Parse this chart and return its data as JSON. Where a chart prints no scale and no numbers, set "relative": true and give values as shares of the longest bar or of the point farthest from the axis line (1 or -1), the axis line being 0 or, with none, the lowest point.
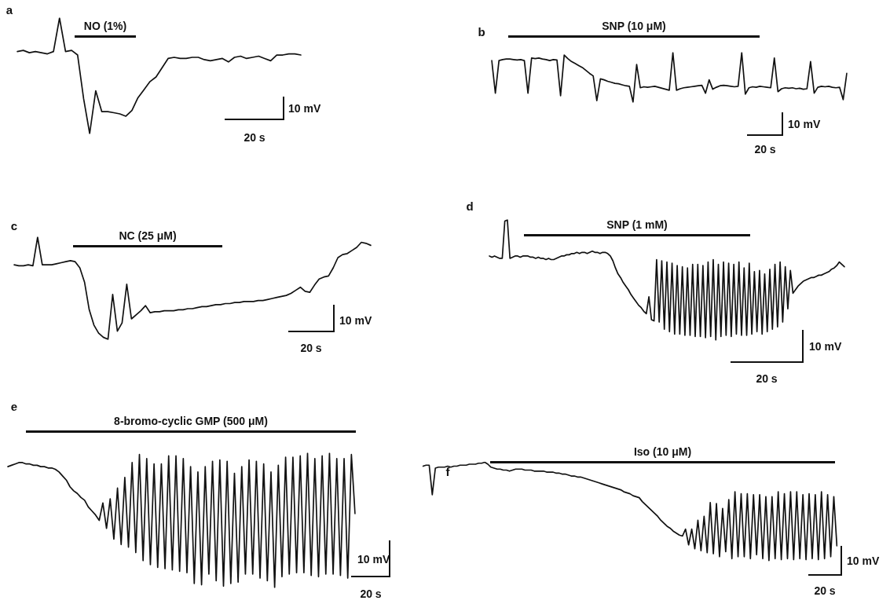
{
  "chart_data": [
    {
      "type": "line",
      "title": "a",
      "relative": true,
      "tick_labels": false,
      "annotations": [
        "NO (1%)",
        "10 mV",
        "20 s"
      ],
      "categories": [
        null,
        null,
        null,
        null,
        null,
        null,
        null,
        null,
        null,
        null,
        null,
        null,
        null,
        null,
        null,
        null,
        null,
        null,
        null,
        null,
        null,
        null,
        null,
        null,
        null,
        null,
        null,
        null,
        null,
        null,
        null,
        null,
        null,
        null,
        null,
        null,
        null,
        null,
        null,
        null,
        null,
        null,
        null,
        null,
        null,
        null,
        null,
        null
      ],
      "series": [
        {
          "color": "#111111",
          "values": [
            0.71,
            0.72,
            0.7,
            0.71,
            0.7,
            0.69,
            0.71,
            1,
            0.71,
            0.72,
            0.68,
            0.3,
            0,
            0.37,
            0.19,
            0.19,
            0.18,
            0.17,
            0.15,
            0.2,
            0.31,
            0.38,
            0.45,
            0.49,
            0.57,
            0.65,
            0.66,
            0.65,
            0.65,
            0.66,
            0.66,
            0.64,
            0.63,
            0.64,
            0.65,
            0.62,
            0.66,
            0.67,
            0.65,
            0.66,
            0.67,
            0.65,
            0.63,
            0.68,
            0.68,
            0.69,
            0.69,
            0.68
          ]
        }
      ]
    },
    {
      "type": "line",
      "title": "b",
      "relative": true,
      "tick_labels": false,
      "annotations": [
        "SNP (10 μM)",
        "10 mV",
        "20 s"
      ],
      "categories": [
        null,
        null,
        null,
        null,
        null,
        null,
        null,
        null,
        null,
        null,
        null,
        null,
        null,
        null,
        null,
        null,
        null,
        null,
        null,
        null,
        null,
        null,
        null,
        null,
        null,
        null,
        null,
        null,
        null,
        null,
        null,
        null,
        null,
        null,
        null,
        null,
        null,
        null,
        null,
        null,
        null,
        null,
        null,
        null,
        null,
        null,
        null,
        null,
        null,
        null,
        null,
        null,
        null,
        null,
        null,
        null,
        null,
        null,
        null,
        null,
        null,
        null,
        null,
        null,
        null,
        null,
        null,
        null,
        null,
        null,
        null,
        null,
        null,
        null,
        null,
        null,
        null,
        null,
        null,
        null,
        null,
        null,
        null,
        null,
        null,
        null,
        null,
        null,
        null,
        null,
        null,
        null,
        null,
        null,
        null,
        null,
        null,
        null,
        null
      ],
      "series": [
        {
          "color": "#111111",
          "values": [
            0.84,
            0.18,
            0.84,
            0.86,
            0.87,
            0.87,
            0.86,
            0.85,
            0.86,
            0.84,
            0.18,
            0.89,
            0.88,
            0.89,
            0.87,
            0.86,
            0.84,
            0.86,
            0.85,
            0.13,
            0.95,
            0.88,
            0.82,
            0.78,
            0.74,
            0.7,
            0.64,
            0.58,
            0.53,
            0.03,
            0.47,
            0.45,
            0.42,
            0.4,
            0.38,
            0.37,
            0.35,
            0.33,
            0.32,
            0,
            0.76,
            0.29,
            0.31,
            0.3,
            0.31,
            0.32,
            0.3,
            0.28,
            0.26,
            0.24,
            1,
            0.24,
            0.27,
            0.29,
            0.3,
            0.31,
            0.32,
            0.33,
            0.34,
            0.18,
            0.45,
            0.26,
            0.3,
            0.33,
            0.34,
            0.33,
            0.32,
            0.31,
            0.32,
            1,
            0.16,
            0.29,
            0.31,
            0.3,
            0.32,
            0.31,
            0.3,
            0.29,
            0.89,
            0.21,
            0.27,
            0.29,
            0.28,
            0.29,
            0.27,
            0.28,
            0.26,
            0.27,
            0.82,
            0.18,
            0.3,
            0.32,
            0.31,
            0.32,
            0.3,
            0.29,
            0.3,
            0.05,
            0.58
          ]
        }
      ]
    },
    {
      "type": "line",
      "title": "c",
      "relative": true,
      "tick_labels": false,
      "annotations": [
        "NC (25 μM)",
        "10 mV",
        "20 s"
      ],
      "categories": [
        null,
        null,
        null,
        null,
        null,
        null,
        null,
        null,
        null,
        null,
        null,
        null,
        null,
        null,
        null,
        null,
        null,
        null,
        null,
        null,
        null,
        null,
        null,
        null,
        null,
        null,
        null,
        null,
        null,
        null,
        null,
        null,
        null,
        null,
        null,
        null,
        null,
        null,
        null,
        null,
        null,
        null,
        null,
        null,
        null,
        null,
        null,
        null,
        null,
        null,
        null,
        null,
        null,
        null,
        null,
        null,
        null,
        null,
        null,
        null,
        null,
        null,
        null,
        null,
        null,
        null,
        null,
        null,
        null,
        null,
        null,
        null,
        null,
        null,
        null,
        null,
        null
      ],
      "series": [
        {
          "color": "#111111",
          "values": [
            0.73,
            0.72,
            0.72,
            0.73,
            0.72,
            1,
            0.73,
            0.73,
            0.73,
            0.74,
            0.75,
            0.76,
            0.77,
            0.76,
            0.7,
            0.56,
            0.29,
            0.14,
            0.06,
            0.02,
            0,
            0.44,
            0.08,
            0.16,
            0.54,
            0.2,
            0.24,
            0.28,
            0.33,
            0.26,
            0.27,
            0.27,
            0.28,
            0.28,
            0.28,
            0.29,
            0.29,
            0.3,
            0.3,
            0.31,
            0.32,
            0.32,
            0.33,
            0.34,
            0.34,
            0.35,
            0.35,
            0.36,
            0.36,
            0.37,
            0.37,
            0.37,
            0.38,
            0.38,
            0.39,
            0.4,
            0.41,
            0.42,
            0.43,
            0.45,
            0.48,
            0.51,
            0.47,
            0.46,
            0.53,
            0.59,
            0.61,
            0.62,
            0.7,
            0.8,
            0.83,
            0.84,
            0.87,
            0.9,
            0.95,
            0.94,
            0.92
          ]
        }
      ]
    },
    {
      "type": "line",
      "title": "d",
      "relative": true,
      "tick_labels": false,
      "annotations": [
        "SNP (1 mM)",
        "10 mV",
        "20 s"
      ],
      "categories": [
        null,
        null,
        null,
        null,
        null,
        null,
        null,
        null,
        null,
        null,
        null,
        null,
        null,
        null,
        null,
        null,
        null,
        null,
        null,
        null,
        null,
        null,
        null,
        null,
        null,
        null,
        null,
        null,
        null,
        null,
        null,
        null,
        null,
        null,
        null,
        null,
        null,
        null,
        null,
        null,
        null,
        null,
        null,
        null,
        null,
        null,
        null,
        null,
        null,
        null,
        null,
        null,
        null,
        null,
        null,
        null,
        null,
        null,
        null,
        null,
        null,
        null,
        null,
        null,
        null,
        null,
        null,
        null,
        null,
        null,
        null,
        null,
        null,
        null,
        null,
        null,
        null,
        null,
        null,
        null,
        null,
        null,
        null,
        null,
        null,
        null,
        null,
        null,
        null,
        null,
        null,
        null,
        null,
        null,
        null,
        null,
        null,
        null,
        null,
        null,
        null,
        null,
        null,
        null,
        null,
        null,
        null,
        null,
        null,
        null,
        null,
        null,
        null,
        null,
        null,
        null,
        null,
        null,
        null,
        null,
        null,
        null,
        null,
        null,
        null,
        null,
        null,
        null,
        null,
        null,
        null,
        null,
        null,
        null,
        null,
        null,
        null,
        null,
        null
      ],
      "series": [
        {
          "color": "#111111",
          "values": [
            0.7,
            0.69,
            0.7,
            0.69,
            0.68,
            0.68,
            0.99,
            1,
            0.68,
            0.69,
            0.7,
            0.7,
            0.69,
            0.7,
            0.7,
            0.7,
            0.69,
            0.69,
            0.68,
            0.69,
            0.68,
            0.68,
            0.67,
            0.68,
            0.67,
            0.67,
            0.68,
            0.69,
            0.7,
            0.7,
            0.71,
            0.71,
            0.72,
            0.72,
            0.73,
            0.72,
            0.73,
            0.73,
            0.72,
            0.73,
            0.74,
            0.73,
            0.73,
            0.72,
            0.73,
            0.73,
            0.72,
            0.7,
            0.66,
            0.6,
            0.55,
            0.52,
            0.48,
            0.45,
            0.42,
            0.38,
            0.35,
            0.32,
            0.29,
            0.27,
            0.24,
            0.22,
            0.36,
            0.17,
            0.16,
            0.67,
            0.15,
            0.66,
            0.09,
            0.65,
            0.07,
            0.64,
            0.05,
            0.62,
            0.05,
            0.61,
            0.04,
            0.6,
            0.04,
            0.63,
            0.03,
            0.63,
            0.03,
            0.62,
            0.02,
            0.65,
            0.03,
            0.67,
            0,
            0.63,
            0.03,
            0.65,
            0.04,
            0.64,
            0.03,
            0.63,
            0.05,
            0.65,
            0.04,
            0.6,
            0.04,
            0.64,
            0.05,
            0.57,
            0.07,
            0.58,
            0.05,
            0.55,
            0.07,
            0.59,
            0.09,
            0.63,
            0.11,
            0.65,
            0.15,
            0.61,
            0.26,
            0.58,
            0.39,
            0.42,
            0.45,
            0.47,
            0.49,
            0.5,
            0.51,
            0.52,
            0.52,
            0.53,
            0.54,
            0.54,
            0.55,
            0.56,
            0.57,
            0.59,
            0.6,
            0.62,
            0.65,
            0.63,
            0.61
          ]
        }
      ]
    },
    {
      "type": "line",
      "title": "e",
      "relative": true,
      "tick_labels": false,
      "annotations": [
        "8-bromo-cyclic GMP (500 μM)",
        "10 mV",
        "20 s"
      ],
      "categories": [
        null,
        null,
        null,
        null,
        null,
        null,
        null,
        null,
        null,
        null,
        null,
        null,
        null,
        null,
        null,
        null,
        null,
        null,
        null,
        null,
        null,
        null,
        null,
        null,
        null,
        null,
        null,
        null,
        null,
        null,
        null,
        null,
        null,
        null,
        null,
        null,
        null,
        null,
        null,
        null,
        null,
        null,
        null,
        null,
        null,
        null,
        null,
        null,
        null,
        null,
        null,
        null,
        null,
        null,
        null,
        null,
        null,
        null,
        null,
        null,
        null,
        null,
        null,
        null,
        null,
        null,
        null,
        null,
        null,
        null,
        null,
        null,
        null,
        null,
        null,
        null,
        null,
        null,
        null,
        null,
        null,
        null,
        null,
        null,
        null,
        null,
        null,
        null,
        null,
        null,
        null,
        null,
        null,
        null,
        null,
        null
      ],
      "series": [
        {
          "color": "#111111",
          "values": [
            0.9,
            0.91,
            0.92,
            0.93,
            0.93,
            0.92,
            0.92,
            0.91,
            0.91,
            0.9,
            0.9,
            0.89,
            0.89,
            0.88,
            0.86,
            0.83,
            0.8,
            0.75,
            0.72,
            0.7,
            0.67,
            0.65,
            0.6,
            0.57,
            0.54,
            0.5,
            0.63,
            0.44,
            0.66,
            0.36,
            0.74,
            0.32,
            0.82,
            0.3,
            0.93,
            0.26,
            0.99,
            0.2,
            0.96,
            0.17,
            0.92,
            0.15,
            0.92,
            0.14,
            0.98,
            0.13,
            0.98,
            0.12,
            0.96,
            0.11,
            0.9,
            0.03,
            0.86,
            0.02,
            0.9,
            0.1,
            0.94,
            0.05,
            0.95,
            0.01,
            0.94,
            0.03,
            0.85,
            0.04,
            0.9,
            0.1,
            0.95,
            0.1,
            0.94,
            0.07,
            0.92,
            0.05,
            0.86,
            0,
            0.91,
            0.08,
            0.97,
            0.1,
            0.97,
            0.11,
            0.98,
            0.11,
            1,
            0.09,
            0.96,
            0.08,
            0.98,
            0.1,
            1,
            0.1,
            0.96,
            0.09,
            0.96,
            0.07,
            0.99,
            0.55
          ]
        }
      ]
    },
    {
      "type": "line",
      "title": "f",
      "relative": true,
      "tick_labels": false,
      "annotations": [
        "Iso (10 μM)",
        "10 mV",
        "20 s"
      ],
      "categories": [
        null,
        null,
        null,
        null,
        null,
        null,
        null,
        null,
        null,
        null,
        null,
        null,
        null,
        null,
        null,
        null,
        null,
        null,
        null,
        null,
        null,
        null,
        null,
        null,
        null,
        null,
        null,
        null,
        null,
        null,
        null,
        null,
        null,
        null,
        null,
        null,
        null,
        null,
        null,
        null,
        null,
        null,
        null,
        null,
        null,
        null,
        null,
        null,
        null,
        null,
        null,
        null,
        null,
        null,
        null,
        null,
        null,
        null,
        null,
        null,
        null,
        null,
        null,
        null,
        null,
        null,
        null,
        null,
        null,
        null,
        null,
        null,
        null,
        null,
        null,
        null,
        null,
        null,
        null,
        null,
        null,
        null,
        null,
        null,
        null,
        null,
        null,
        null,
        null,
        null,
        null,
        null,
        null,
        null,
        null,
        null,
        null,
        null,
        null,
        null,
        null,
        null,
        null,
        null,
        null,
        null,
        null,
        null,
        null,
        null,
        null,
        null,
        null,
        null,
        null,
        null,
        null,
        null,
        null,
        null,
        null,
        null,
        null,
        null,
        null,
        null,
        null,
        null,
        null,
        null,
        null,
        null,
        null,
        null,
        null
      ],
      "series": [
        {
          "color": "#111111",
          "values": [
            0.96,
            0.97,
            0.97,
            0.67,
            0.94,
            0.95,
            0.95,
            0.95,
            0.96,
            0.95,
            0.96,
            0.96,
            0.97,
            0.97,
            0.97,
            0.98,
            0.98,
            0.98,
            0.99,
            0.99,
            1,
            0.98,
            0.95,
            0.94,
            0.93,
            0.93,
            0.92,
            0.92,
            0.91,
            0.92,
            0.93,
            0.93,
            0.93,
            0.92,
            0.92,
            0.92,
            0.91,
            0.91,
            0.91,
            0.91,
            0.9,
            0.9,
            0.9,
            0.89,
            0.89,
            0.88,
            0.88,
            0.87,
            0.86,
            0.86,
            0.85,
            0.85,
            0.84,
            0.83,
            0.82,
            0.81,
            0.8,
            0.79,
            0.78,
            0.77,
            0.76,
            0.75,
            0.74,
            0.73,
            0.72,
            0.7,
            0.69,
            0.68,
            0.66,
            0.65,
            0.64,
            0.6,
            0.57,
            0.54,
            0.51,
            0.48,
            0.45,
            0.41,
            0.38,
            0.35,
            0.33,
            0.3,
            0.28,
            0.26,
            0.25,
            0.32,
            0.16,
            0.32,
            0.12,
            0.41,
            0.1,
            0.45,
            0.08,
            0.59,
            0.07,
            0.58,
            0.04,
            0.53,
            0.09,
            0.62,
            0.02,
            0.7,
            0.04,
            0.68,
            0.04,
            0.68,
            0.02,
            0.67,
            0.06,
            0.67,
            0.02,
            0.65,
            0,
            0.65,
            0.02,
            0.7,
            0.01,
            0.68,
            0.02,
            0.7,
            0.01,
            0.7,
            0.02,
            0.67,
            0.01,
            0.68,
            0.02,
            0.67,
            0.01,
            0.7,
            0.02,
            0.67,
            0.04,
            0.65,
            0.15
          ]
        }
      ]
    }
  ]
}
